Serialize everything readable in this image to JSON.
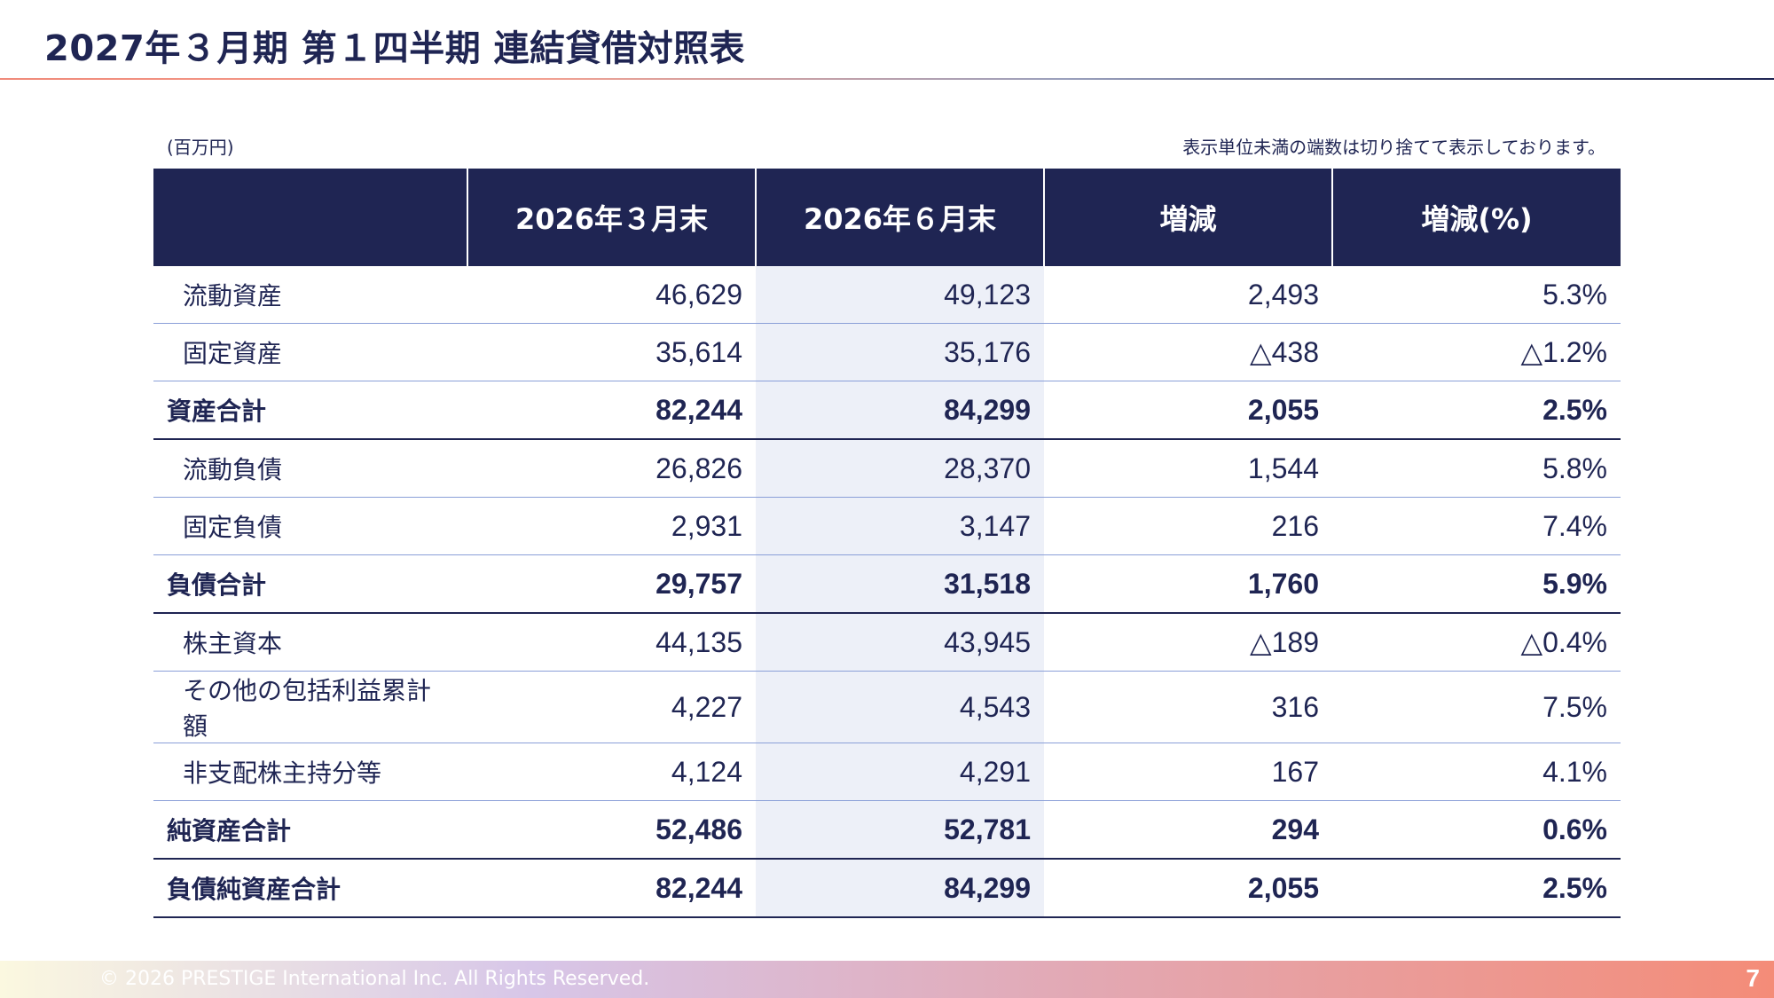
{
  "title": "2027年３月期 第１四半期 連結貸借対照表",
  "unit": "(百万円)",
  "note": "表示単位未満の端数は切り捨てて表示しております。",
  "table": {
    "headers": [
      "",
      "2026年３月末",
      "2026年６月末",
      "増減",
      "増減(%)"
    ],
    "rows": [
      {
        "label": "流動資産",
        "v1": "46,629",
        "v2": "49,123",
        "diff": "2,493",
        "pct": "5.3%"
      },
      {
        "label": "固定資産",
        "v1": "35,614",
        "v2": "35,176",
        "diff": "△438",
        "pct": "△1.2%"
      },
      {
        "label": "資産合計",
        "v1": "82,244",
        "v2": "84,299",
        "diff": "2,055",
        "pct": "2.5%"
      },
      {
        "label": "流動負債",
        "v1": "26,826",
        "v2": "28,370",
        "diff": "1,544",
        "pct": "5.8%"
      },
      {
        "label": "固定負債",
        "v1": "2,931",
        "v2": "3,147",
        "diff": "216",
        "pct": "7.4%"
      },
      {
        "label": "負債合計",
        "v1": "29,757",
        "v2": "31,518",
        "diff": "1,760",
        "pct": "5.9%"
      },
      {
        "label": "株主資本",
        "v1": "44,135",
        "v2": "43,945",
        "diff": "△189",
        "pct": "△0.4%"
      },
      {
        "label": "その他の包括利益累計額",
        "v1": "4,227",
        "v2": "4,543",
        "diff": "316",
        "pct": "7.5%"
      },
      {
        "label": "非支配株主持分等",
        "v1": "4,124",
        "v2": "4,291",
        "diff": "167",
        "pct": "4.1%"
      },
      {
        "label": "純資産合計",
        "v1": "52,486",
        "v2": "52,781",
        "diff": "294",
        "pct": "0.6%"
      },
      {
        "label": "負債純資産合計",
        "v1": "82,244",
        "v2": "84,299",
        "diff": "2,055",
        "pct": "2.5%"
      }
    ]
  },
  "footer": {
    "copyright": "© 2026 PRESTIGE International Inc. All Rights Reserved.",
    "page": "7"
  },
  "colors": {
    "navy": "#1f2553",
    "highlight_column": "#edf0f8",
    "row_divider": "#8a9fd8",
    "accent": "#f48c78"
  }
}
